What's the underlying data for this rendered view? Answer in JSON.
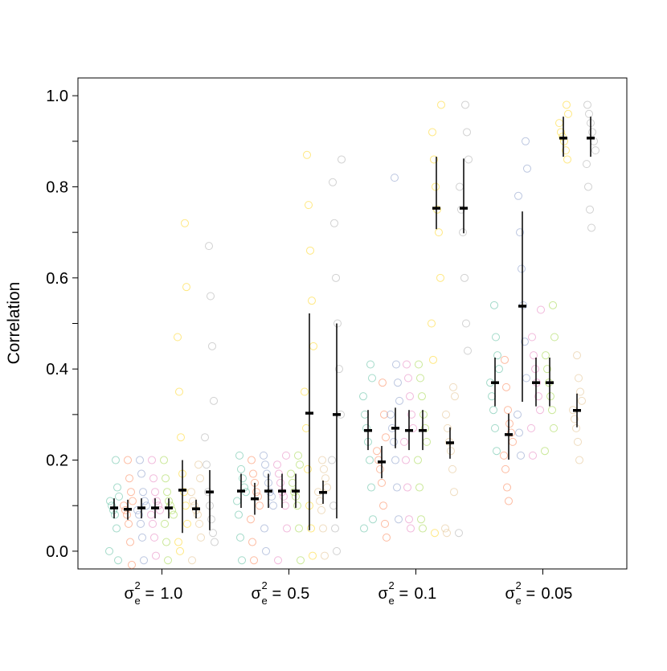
{
  "chart_data": {
    "type": "strip",
    "y_label": "Correlation",
    "category_symbol": "σ",
    "category_sup": "2",
    "category_sub": "e",
    "category_relation": "=",
    "categories": [
      "1.0",
      "0.5",
      "0.1",
      "0.05"
    ],
    "ylim": [
      -0.039,
      1.039
    ],
    "yticks": [
      {
        "value": 0,
        "label": "0.0"
      },
      0.2,
      0.4,
      0.6,
      0.8,
      {
        "value": 1,
        "label": "1.0"
      }
    ],
    "yminorticks": [
      0.1,
      0.3,
      0.5,
      0.7,
      0.9
    ],
    "series": [
      {
        "color": "#66c2a5",
        "values": [
          0.095,
          0.132,
          0.265,
          0.37
        ],
        "lower": [
          0.072,
          0.095,
          0.222,
          0.318
        ],
        "upper": [
          0.116,
          0.17,
          0.31,
          0.425
        ],
        "points": [
          [
            0.0,
            -0.02,
            0.05,
            0.08,
            0.09,
            0.1,
            0.11,
            0.12,
            0.14,
            0.2
          ],
          [
            -0.02,
            0.03,
            0.08,
            0.11,
            0.13,
            0.14,
            0.16,
            0.18,
            0.21
          ],
          [
            0.05,
            0.07,
            0.14,
            0.2,
            0.24,
            0.27,
            0.3,
            0.34,
            0.38,
            0.41
          ],
          [
            0.22,
            0.27,
            0.31,
            0.34,
            0.37,
            0.4,
            0.43,
            0.47,
            0.54
          ]
        ]
      },
      {
        "color": "#fc8d62",
        "values": [
          0.092,
          0.115,
          0.196,
          0.256
        ],
        "lower": [
          0.069,
          0.08,
          0.16,
          0.201
        ],
        "upper": [
          0.113,
          0.15,
          0.231,
          0.302
        ],
        "points": [
          [
            -0.03,
            0.02,
            0.06,
            0.08,
            0.09,
            0.1,
            0.11,
            0.13,
            0.16,
            0.2
          ],
          [
            -0.02,
            0.02,
            0.07,
            0.1,
            0.12,
            0.13,
            0.15,
            0.17,
            0.2
          ],
          [
            0.03,
            0.06,
            0.1,
            0.15,
            0.18,
            0.2,
            0.22,
            0.25,
            0.3,
            0.37
          ],
          [
            0.11,
            0.14,
            0.18,
            0.21,
            0.24,
            0.26,
            0.28,
            0.31,
            0.36,
            0.42
          ]
        ]
      },
      {
        "color": "#8da0cb",
        "values": [
          0.095,
          0.132,
          0.27,
          0.538
        ],
        "lower": [
          0.072,
          0.095,
          0.226,
          0.328
        ],
        "upper": [
          0.116,
          0.17,
          0.315,
          0.746
        ],
        "points": [
          [
            -0.02,
            0.03,
            0.06,
            0.08,
            0.09,
            0.1,
            0.11,
            0.13,
            0.17,
            0.2
          ],
          [
            0.0,
            0.05,
            0.1,
            0.12,
            0.13,
            0.15,
            0.17,
            0.19,
            0.21
          ],
          [
            0.07,
            0.14,
            0.2,
            0.24,
            0.27,
            0.3,
            0.33,
            0.37,
            0.41,
            0.82
          ],
          [
            0.21,
            0.26,
            0.3,
            0.38,
            0.46,
            0.54,
            0.62,
            0.7,
            0.78,
            0.84,
            0.9
          ]
        ]
      },
      {
        "color": "#e78ac3",
        "values": [
          0.095,
          0.132,
          0.265,
          0.37
        ],
        "lower": [
          0.072,
          0.095,
          0.222,
          0.318
        ],
        "upper": [
          0.116,
          0.17,
          0.31,
          0.425
        ],
        "points": [
          [
            -0.01,
            0.03,
            0.06,
            0.08,
            0.09,
            0.1,
            0.11,
            0.13,
            0.16,
            0.2
          ],
          [
            -0.02,
            0.05,
            0.1,
            0.12,
            0.13,
            0.15,
            0.17,
            0.19,
            0.21
          ],
          [
            0.05,
            0.07,
            0.14,
            0.2,
            0.24,
            0.27,
            0.3,
            0.34,
            0.38,
            0.41
          ],
          [
            0.21,
            0.27,
            0.31,
            0.34,
            0.37,
            0.4,
            0.43,
            0.47,
            0.53
          ]
        ]
      },
      {
        "color": "#a6d854",
        "values": [
          0.095,
          0.132,
          0.265,
          0.37
        ],
        "lower": [
          0.072,
          0.095,
          0.222,
          0.318
        ],
        "upper": [
          0.116,
          0.17,
          0.31,
          0.425
        ],
        "points": [
          [
            -0.02,
            0.02,
            0.06,
            0.08,
            0.09,
            0.1,
            0.11,
            0.13,
            0.16,
            0.2
          ],
          [
            -0.02,
            0.05,
            0.1,
            0.12,
            0.13,
            0.15,
            0.17,
            0.19,
            0.21
          ],
          [
            0.05,
            0.07,
            0.14,
            0.2,
            0.24,
            0.27,
            0.3,
            0.34,
            0.38,
            0.41
          ],
          [
            0.22,
            0.27,
            0.31,
            0.34,
            0.37,
            0.4,
            0.43,
            0.47,
            0.54
          ]
        ]
      },
      {
        "color": "#ffd92f",
        "values": [
          0.134,
          0.303,
          0.753,
          0.907
        ],
        "lower": [
          0.04,
          0.046,
          0.707,
          0.866
        ],
        "upper": [
          0.2,
          0.522,
          0.866,
          0.954
        ],
        "points": [
          [
            0.0,
            0.02,
            0.06,
            0.1,
            0.13,
            0.17,
            0.25,
            0.35,
            0.47,
            0.58,
            0.72
          ],
          [
            -0.01,
            0.05,
            0.1,
            0.18,
            0.27,
            0.35,
            0.45,
            0.55,
            0.66,
            0.76,
            0.87
          ],
          [
            0.04,
            0.42,
            0.5,
            0.6,
            0.7,
            0.75,
            0.8,
            0.86,
            0.92,
            0.98
          ],
          [
            0.86,
            0.88,
            0.9,
            0.91,
            0.92,
            0.94,
            0.96,
            0.98
          ]
        ]
      },
      {
        "color": "#e5c494",
        "values": [
          0.093,
          0.129,
          0.238,
          0.309
        ],
        "lower": [
          0.072,
          0.104,
          0.203,
          0.272
        ],
        "upper": [
          0.113,
          0.155,
          0.272,
          0.346
        ],
        "points": [
          [
            -0.02,
            0.03,
            0.06,
            0.08,
            0.09,
            0.1,
            0.11,
            0.13,
            0.16,
            0.19
          ],
          [
            -0.01,
            0.05,
            0.09,
            0.11,
            0.13,
            0.14,
            0.16,
            0.18,
            0.2
          ],
          [
            0.04,
            0.05,
            0.13,
            0.18,
            0.22,
            0.24,
            0.27,
            0.3,
            0.34,
            0.36
          ],
          [
            0.2,
            0.24,
            0.27,
            0.29,
            0.31,
            0.33,
            0.35,
            0.38,
            0.43
          ]
        ]
      },
      {
        "color": "#b3b3b3",
        "values": [
          0.13,
          0.3,
          0.753,
          0.907
        ],
        "lower": [
          0.046,
          0.072,
          0.698,
          0.866
        ],
        "upper": [
          0.178,
          0.5,
          0.862,
          0.954
        ],
        "points": [
          [
            0.02,
            0.04,
            0.07,
            0.1,
            0.13,
            0.19,
            0.25,
            0.33,
            0.45,
            0.56,
            0.67
          ],
          [
            0.0,
            0.05,
            0.1,
            0.2,
            0.3,
            0.4,
            0.5,
            0.6,
            0.72,
            0.81,
            0.86
          ],
          [
            0.04,
            0.44,
            0.5,
            0.6,
            0.7,
            0.75,
            0.8,
            0.86,
            0.92,
            0.98
          ],
          [
            0.71,
            0.75,
            0.8,
            0.85,
            0.88,
            0.9,
            0.92,
            0.94,
            0.96,
            0.98
          ]
        ]
      }
    ]
  }
}
